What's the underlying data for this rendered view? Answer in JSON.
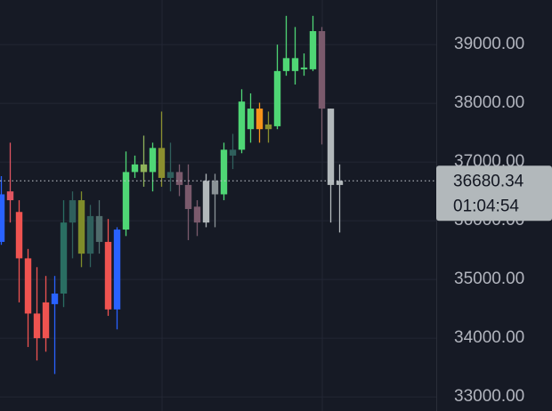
{
  "chart_data": {
    "type": "candlestick",
    "ylim": [
      32760,
      39760
    ],
    "yticks": [
      {
        "value": 33000,
        "label": "33000.00"
      },
      {
        "value": 34000,
        "label": "34000.00"
      },
      {
        "value": 35000,
        "label": "35000.00"
      },
      {
        "value": 36000,
        "label": "36000.00"
      },
      {
        "value": 37000,
        "label": "37000.00"
      },
      {
        "value": 38000,
        "label": "38000.00"
      },
      {
        "value": 39000,
        "label": "39000.00"
      }
    ],
    "grid": true,
    "last_price": 36680.34,
    "countdown": "01:04:54",
    "candles": [
      {
        "open": 35640,
        "high": 36760,
        "low": 35590,
        "close": 36450,
        "color": "#2962ff"
      },
      {
        "open": 36500,
        "high": 37330,
        "low": 35970,
        "close": 36350,
        "color": "#e05561"
      },
      {
        "open": 36150,
        "high": 36350,
        "low": 34610,
        "close": 35360,
        "color": "#ef5350"
      },
      {
        "open": 35360,
        "high": 35520,
        "low": 33850,
        "close": 34420,
        "color": "#ef5350"
      },
      {
        "open": 34420,
        "high": 35210,
        "low": 33620,
        "close": 34000,
        "color": "#ef5350"
      },
      {
        "open": 34610,
        "high": 35060,
        "low": 33770,
        "close": 34000,
        "color": "#ef5350"
      },
      {
        "open": 34580,
        "high": 35060,
        "low": 33390,
        "close": 34760,
        "color": "#2962ff"
      },
      {
        "open": 34760,
        "high": 36350,
        "low": 34530,
        "close": 35970,
        "color": "#2a6e62"
      },
      {
        "open": 35970,
        "high": 36500,
        "low": 35360,
        "close": 36350,
        "color": "#2f5f5c"
      },
      {
        "open": 35440,
        "high": 36500,
        "low": 35210,
        "close": 36350,
        "color": "#7f8c2a"
      },
      {
        "open": 35440,
        "high": 36270,
        "low": 35210,
        "close": 36080,
        "color": "#2f5f5c"
      },
      {
        "open": 35640,
        "high": 36350,
        "low": 35440,
        "close": 36080,
        "color": "#4f6b6b"
      },
      {
        "open": 35640,
        "high": 36030,
        "low": 34380,
        "close": 34490,
        "color": "#ef5350"
      },
      {
        "open": 34490,
        "high": 35890,
        "low": 34150,
        "close": 35850,
        "color": "#2962ff"
      },
      {
        "open": 35850,
        "high": 37180,
        "low": 35740,
        "close": 36830,
        "color": "#4fd675"
      },
      {
        "open": 36830,
        "high": 37110,
        "low": 36730,
        "close": 36960,
        "color": "#4fd675"
      },
      {
        "open": 36830,
        "high": 37450,
        "low": 36580,
        "close": 36960,
        "color": "#8fb25a"
      },
      {
        "open": 36830,
        "high": 37330,
        "low": 36500,
        "close": 37240,
        "color": "#4fd675"
      },
      {
        "open": 37240,
        "high": 37860,
        "low": 36580,
        "close": 36730,
        "color": "#8b8f2f"
      },
      {
        "open": 36730,
        "high": 37330,
        "low": 36500,
        "close": 36830,
        "color": "#2f5f5c"
      },
      {
        "open": 36830,
        "high": 36960,
        "low": 36420,
        "close": 36610,
        "color": "#7a5a6c"
      },
      {
        "open": 36610,
        "high": 36960,
        "low": 35670,
        "close": 36200,
        "color": "#7a5a6c"
      },
      {
        "open": 36240,
        "high": 36350,
        "low": 35740,
        "close": 35970,
        "color": "#7a5a6c"
      },
      {
        "open": 35970,
        "high": 36800,
        "low": 35890,
        "close": 36680,
        "color": "#b2b8bb"
      },
      {
        "open": 36450,
        "high": 36800,
        "low": 35890,
        "close": 36680,
        "color": "#8a9296"
      },
      {
        "open": 36450,
        "high": 37330,
        "low": 36350,
        "close": 37210,
        "color": "#4fd675"
      },
      {
        "open": 37210,
        "high": 37480,
        "low": 36880,
        "close": 37110,
        "color": "#2f5f5c"
      },
      {
        "open": 37210,
        "high": 38240,
        "low": 37150,
        "close": 38030,
        "color": "#4fd675"
      },
      {
        "open": 37560,
        "high": 38170,
        "low": 37330,
        "close": 37910,
        "color": "#4fd675"
      },
      {
        "open": 37910,
        "high": 38010,
        "low": 37330,
        "close": 37560,
        "color": "#f7931a"
      },
      {
        "open": 37560,
        "high": 37860,
        "low": 37330,
        "close": 37640,
        "color": "#8b8f2f"
      },
      {
        "open": 37610,
        "high": 39000,
        "low": 37560,
        "close": 38550,
        "color": "#4fd675"
      },
      {
        "open": 38550,
        "high": 39490,
        "low": 38470,
        "close": 38770,
        "color": "#4fd675"
      },
      {
        "open": 38770,
        "high": 39300,
        "low": 38320,
        "close": 38550,
        "color": "#4fd675"
      },
      {
        "open": 38580,
        "high": 38850,
        "low": 38470,
        "close": 38610,
        "color": "#4fd675"
      },
      {
        "open": 38580,
        "high": 39490,
        "low": 38550,
        "close": 39230,
        "color": "#4fd675"
      },
      {
        "open": 39230,
        "high": 39300,
        "low": 37300,
        "close": 37910,
        "color": "#7a5a6c"
      },
      {
        "open": 37910,
        "high": 37910,
        "low": 35970,
        "close": 36610,
        "color": "#b2b8bb"
      },
      {
        "open": 36610,
        "high": 36960,
        "low": 35800,
        "close": 36680.34,
        "color": "#b2b8bb"
      }
    ]
  }
}
